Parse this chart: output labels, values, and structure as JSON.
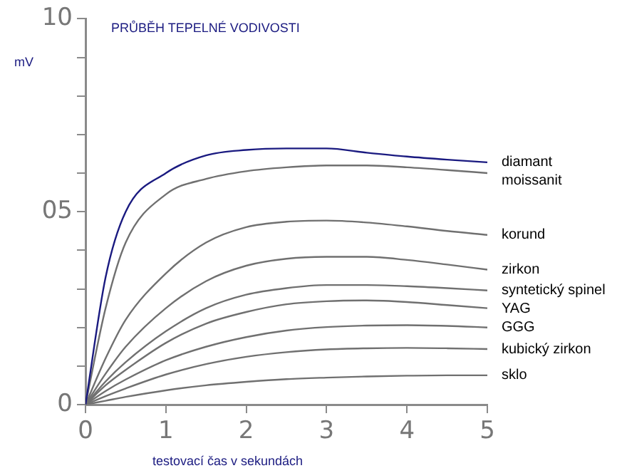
{
  "chart_data": {
    "type": "line",
    "title": "PRŮBĚH TEPELNÉ VODIVOSTI",
    "xlabel": "testovací čas v sekundách",
    "ylabel": "mV",
    "x": [
      0,
      0.25,
      0.5,
      1,
      1.5,
      2,
      2.5,
      3,
      3.5,
      4,
      4.5,
      5
    ],
    "xlim": [
      0,
      5
    ],
    "xticks": [
      0,
      1,
      2,
      3,
      4,
      5
    ],
    "ylim": [
      0,
      10
    ],
    "yticks": [
      {
        "value": 0,
        "label": "0"
      },
      {
        "value": 1,
        "label": null
      },
      {
        "value": 2,
        "label": null
      },
      {
        "value": 3,
        "label": null
      },
      {
        "value": 4,
        "label": null
      },
      {
        "value": 5,
        "label": "05"
      },
      {
        "value": 6,
        "label": null
      },
      {
        "value": 7,
        "label": null
      },
      {
        "value": 8,
        "label": null
      },
      {
        "value": 9,
        "label": null
      },
      {
        "value": 10,
        "label": "10"
      }
    ],
    "grid": false,
    "legend": false,
    "marker": "none",
    "line_style": "solid",
    "series": [
      {
        "name": "diamant",
        "color": "#1a1a80",
        "values": [
          0,
          3.3,
          5,
          6,
          6.46,
          6.6,
          6.64,
          6.64,
          6.53,
          6.43,
          6.35,
          6.28
        ]
      },
      {
        "name": "moissanit",
        "color": "#707070",
        "values": [
          0,
          2.5,
          4.2,
          5.45,
          5.85,
          6.05,
          6.15,
          6.2,
          6.2,
          6.15,
          6.08,
          6
        ]
      },
      {
        "name": "korund",
        "color": "#707070",
        "values": [
          0,
          1.2,
          2.2,
          3.4,
          4.2,
          4.6,
          4.74,
          4.77,
          4.72,
          4.62,
          4.5,
          4.4
        ]
      },
      {
        "name": "zirkon",
        "color": "#707070",
        "values": [
          0,
          0.8,
          1.5,
          2.5,
          3.2,
          3.6,
          3.78,
          3.83,
          3.83,
          3.75,
          3.63,
          3.5
        ]
      },
      {
        "name": "syntetický spinel",
        "color": "#707070",
        "values": [
          0,
          0.6,
          1.1,
          1.9,
          2.5,
          2.85,
          3.02,
          3.1,
          3.1,
          3.07,
          3.02,
          2.96
        ]
      },
      {
        "name": "YAG",
        "color": "#707070",
        "values": [
          0,
          0.5,
          0.9,
          1.6,
          2.1,
          2.4,
          2.6,
          2.68,
          2.7,
          2.66,
          2.58,
          2.5
        ]
      },
      {
        "name": "GGG",
        "color": "#707070",
        "values": [
          0,
          0.35,
          0.65,
          1.15,
          1.5,
          1.75,
          1.92,
          2.01,
          2.05,
          2.06,
          2.04,
          2
        ]
      },
      {
        "name": "kubický zirkon",
        "color": "#707070",
        "values": [
          0,
          0.22,
          0.42,
          0.78,
          1.05,
          1.24,
          1.36,
          1.43,
          1.46,
          1.47,
          1.46,
          1.44
        ]
      },
      {
        "name": "sklo",
        "color": "#707070",
        "values": [
          0,
          0.1,
          0.2,
          0.37,
          0.5,
          0.59,
          0.66,
          0.7,
          0.73,
          0.75,
          0.76,
          0.76
        ]
      }
    ]
  }
}
